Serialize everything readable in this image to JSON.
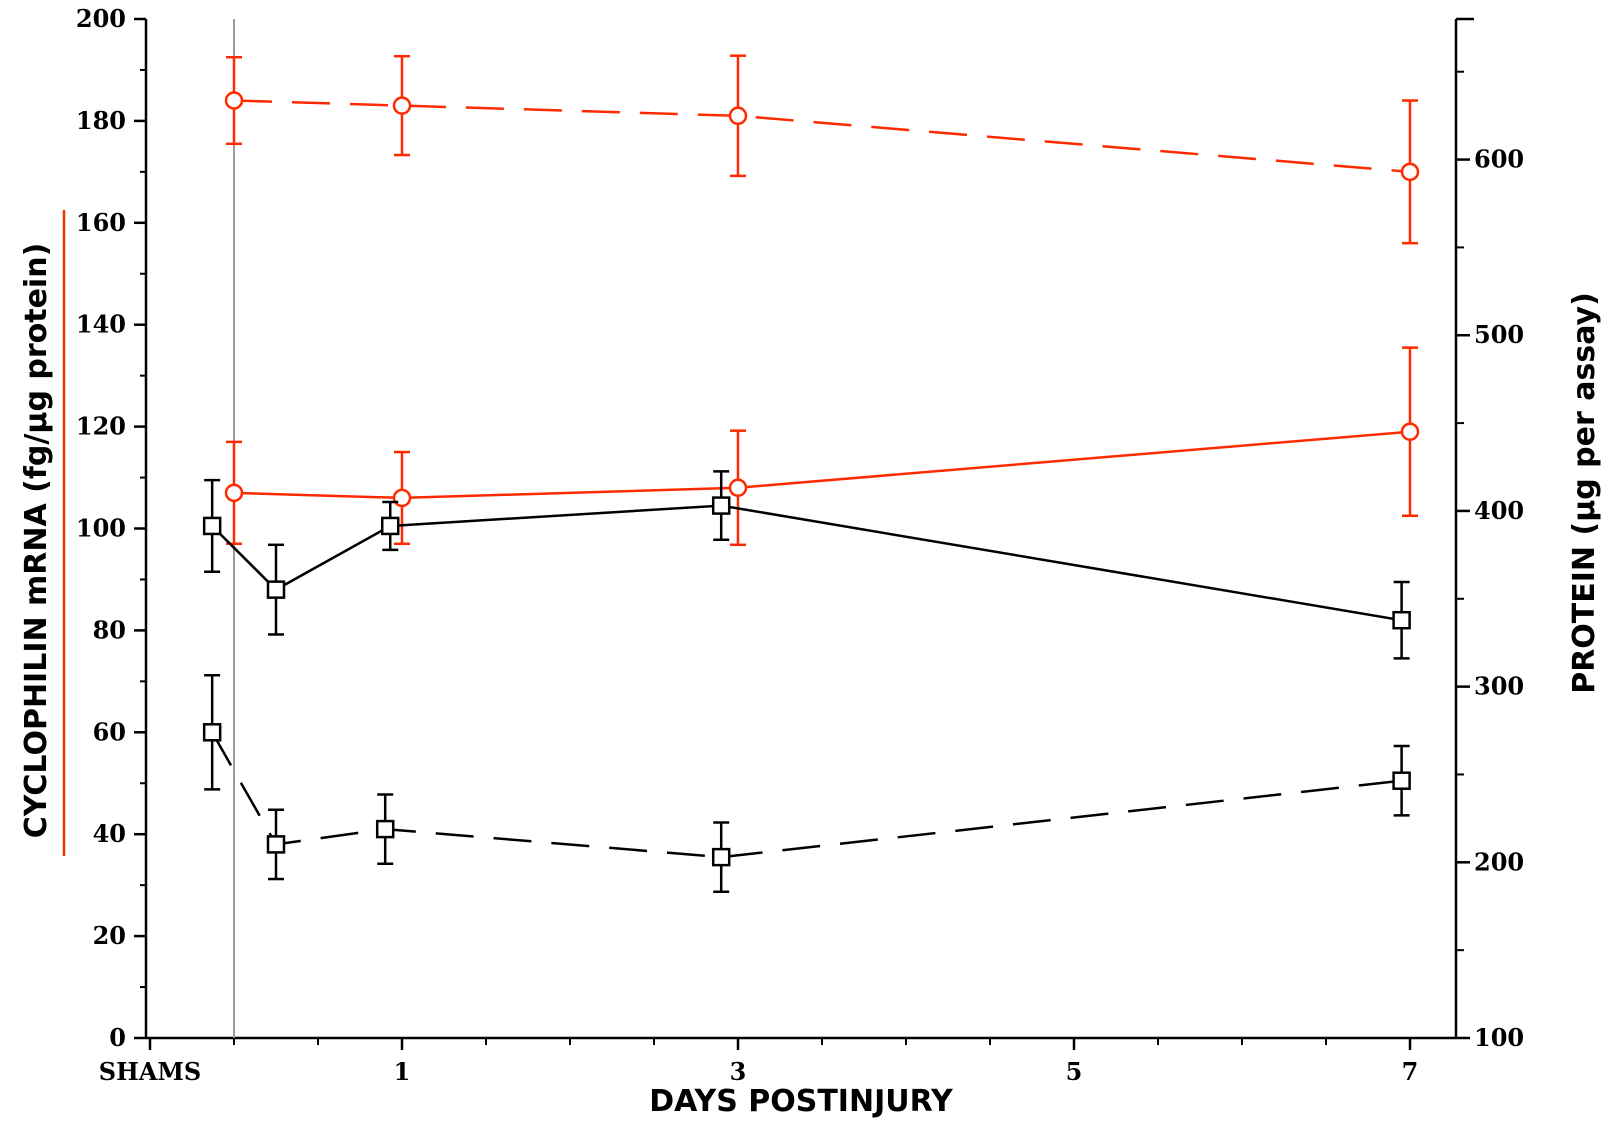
{
  "chart_data": {
    "type": "line",
    "title": "",
    "xlabel": "DAYS POSTINJURY",
    "ylabel": "CYCLOPHILIN mRNA (fg/µg protein)",
    "y2label": "PROTEIN (µg per assay)",
    "xlim": [
      -0.7,
      7.5
    ],
    "ylim": [
      0,
      200
    ],
    "y2lim": [
      100,
      680
    ],
    "x_ticks": [
      {
        "x": -0.5,
        "label": "SHAMS"
      },
      {
        "x": 1,
        "label": "1"
      },
      {
        "x": 3,
        "label": "3"
      },
      {
        "x": 5,
        "label": "5"
      },
      {
        "x": 7,
        "label": "7"
      }
    ],
    "y_ticks": [
      0,
      20,
      40,
      60,
      80,
      100,
      120,
      140,
      160,
      180,
      200
    ],
    "y2_ticks": [
      100,
      200,
      300,
      400,
      500,
      600
    ],
    "shams_divider_x": 0,
    "grid": false,
    "legend": "none",
    "colors": {
      "red": "#ff2a00",
      "black": "#000000",
      "divider": "#9a9a9a"
    },
    "series": [
      {
        "axis": "left",
        "color": "#ff2a00",
        "dash": "dashed",
        "marker": "circle",
        "x": [
          0,
          1,
          3,
          7
        ],
        "y": [
          184,
          183,
          181,
          170
        ],
        "err": [
          8.5,
          9.7,
          11.8,
          14
        ]
      },
      {
        "axis": "left",
        "color": "#ff2a00",
        "dash": "solid",
        "marker": "circle",
        "x": [
          0,
          1,
          3,
          7
        ],
        "y": [
          107,
          106,
          108,
          119
        ],
        "err": [
          10,
          9,
          11.2,
          16.5
        ]
      },
      {
        "axis": "left",
        "color": "#000000",
        "dash": "solid",
        "marker": "square",
        "x": [
          -0.13,
          0.25,
          0.93,
          2.9,
          6.95
        ],
        "y": [
          100.5,
          88,
          100.5,
          104.5,
          82
        ],
        "err": [
          9,
          8.8,
          4.7,
          6.7,
          7.5
        ]
      },
      {
        "axis": "left",
        "color": "#000000",
        "dash": "dashed",
        "marker": "square",
        "x": [
          -0.13,
          0.25,
          0.9,
          2.9,
          6.95
        ],
        "y": [
          60,
          38,
          41,
          35.5,
          50.5
        ],
        "err": [
          11.2,
          6.8,
          6.8,
          6.8,
          6.8
        ]
      }
    ]
  }
}
